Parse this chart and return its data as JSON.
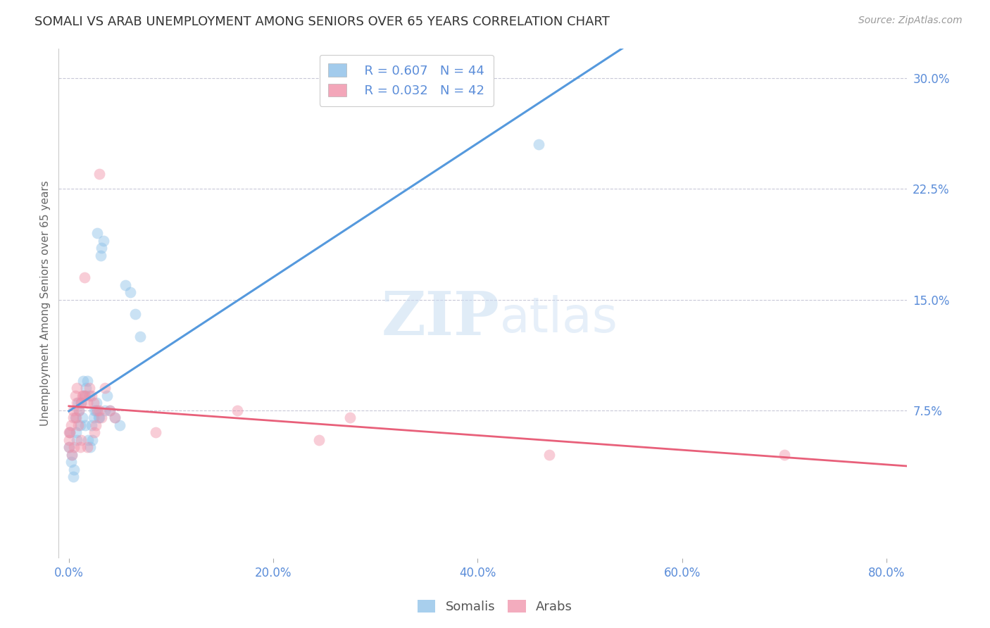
{
  "title": "SOMALI VS ARAB UNEMPLOYMENT AMONG SENIORS OVER 65 YEARS CORRELATION CHART",
  "source": "Source: ZipAtlas.com",
  "xlabel_ticks": [
    0.0,
    20.0,
    40.0,
    60.0,
    80.0
  ],
  "ylabel_ticks": [
    7.5,
    15.0,
    22.5,
    30.0
  ],
  "xlim": [
    -1.0,
    82
  ],
  "ylim": [
    -2.5,
    32
  ],
  "ylabel": "Unemployment Among Seniors over 65 years",
  "somali_color": "#8bbfe8",
  "arab_color": "#f090a8",
  "trend_somali_color": "#5599dd",
  "trend_arab_color": "#e8607a",
  "watermark_zip": "ZIP",
  "watermark_atlas": "atlas",
  "legend_somali_R": "R = 0.607",
  "legend_somali_N": "N = 44",
  "legend_arab_R": "R = 0.032",
  "legend_arab_N": "N = 42",
  "somali_x": [
    0.0,
    0.3,
    0.5,
    0.7,
    0.8,
    1.0,
    1.2,
    1.3,
    1.5,
    1.7,
    1.8,
    2.0,
    2.2,
    2.3,
    2.5,
    2.7,
    2.8,
    3.0,
    3.2,
    3.5,
    0.2,
    0.4,
    0.6,
    0.9,
    1.1,
    1.4,
    1.6,
    1.9,
    2.1,
    2.4,
    2.6,
    2.9,
    3.1,
    3.4,
    3.7,
    4.0,
    4.5,
    5.0,
    5.5,
    6.0,
    6.5,
    7.0,
    46.0,
    0.1
  ],
  "somali_y": [
    5.0,
    4.5,
    3.5,
    6.0,
    5.5,
    7.5,
    8.0,
    7.0,
    8.5,
    9.0,
    9.5,
    8.5,
    6.5,
    5.5,
    7.5,
    8.0,
    19.5,
    7.0,
    18.5,
    7.5,
    4.0,
    3.0,
    7.0,
    8.0,
    6.5,
    9.5,
    6.5,
    5.5,
    5.0,
    7.0,
    7.5,
    7.0,
    18.0,
    19.0,
    8.5,
    7.5,
    7.0,
    6.5,
    16.0,
    15.5,
    14.0,
    12.5,
    25.5,
    6.0
  ],
  "arab_x": [
    0.0,
    0.0,
    0.0,
    0.2,
    0.4,
    0.6,
    0.8,
    1.0,
    1.2,
    1.4,
    1.6,
    1.8,
    2.0,
    2.2,
    2.4,
    2.6,
    2.8,
    3.0,
    3.2,
    3.5,
    4.0,
    4.5,
    0.3,
    0.5,
    0.7,
    0.9,
    1.1,
    1.3,
    1.5,
    8.5,
    16.5,
    24.5,
    27.5,
    47.0,
    70.0,
    0.1,
    0.4,
    0.8,
    1.2,
    1.8,
    2.5,
    3.0
  ],
  "arab_y": [
    5.5,
    6.0,
    5.0,
    6.5,
    7.0,
    8.5,
    9.0,
    7.5,
    8.0,
    8.5,
    8.5,
    8.0,
    9.0,
    8.5,
    8.0,
    6.5,
    7.5,
    7.5,
    7.0,
    9.0,
    7.5,
    7.0,
    4.5,
    5.0,
    7.0,
    6.5,
    5.0,
    8.5,
    16.5,
    6.0,
    7.5,
    5.5,
    7.0,
    4.5,
    4.5,
    6.0,
    7.5,
    8.0,
    5.5,
    5.0,
    6.0,
    23.5
  ],
  "grid_color": "#c8c8d8",
  "bg_color": "#ffffff",
  "tick_color": "#5b8dd9",
  "title_color": "#333333",
  "source_color": "#999999",
  "marker_size": 130,
  "marker_alpha": 0.45
}
